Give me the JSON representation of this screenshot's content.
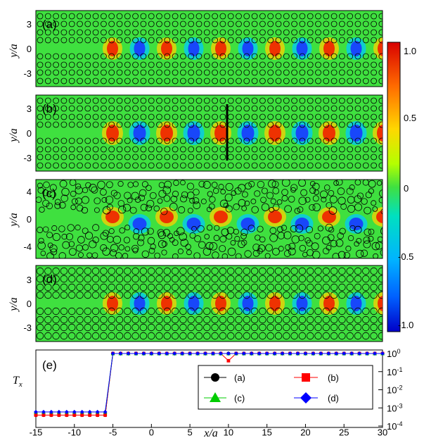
{
  "figure": {
    "panels": [
      {
        "label": "(a)",
        "ylabel": "y/a",
        "yticks": [
          "3",
          "0",
          "-3"
        ]
      },
      {
        "label": "(b)",
        "ylabel": "y/a",
        "yticks": [
          "3",
          "0",
          "-3"
        ]
      },
      {
        "label": "(c)",
        "ylabel": "y/a",
        "yticks": [
          "4",
          "0",
          "-4"
        ]
      },
      {
        "label": "(d)",
        "ylabel": "y/a",
        "yticks": [
          "3",
          "0",
          "-3"
        ]
      }
    ],
    "colorbar": {
      "ticks": [
        "1.0",
        "0.5",
        "0",
        "-0.5",
        "-1.0"
      ],
      "min": -1.0,
      "max": 1.0
    },
    "panel_e": {
      "label": "(e)",
      "ylabel": "T",
      "ylabel_sub": "x"
    },
    "xaxis": {
      "label": "x/a",
      "ticks": [
        "-15",
        "-10",
        "-5",
        "0",
        "5",
        "10",
        "15",
        "20",
        "25",
        "30"
      ]
    },
    "legend": [
      {
        "label": "(a)",
        "color": "#000000",
        "marker": "circle"
      },
      {
        "label": "(b)",
        "color": "#ff0000",
        "marker": "square"
      },
      {
        "label": "(c)",
        "color": "#00cc00",
        "marker": "triangle"
      },
      {
        "label": "(d)",
        "color": "#0000ff",
        "marker": "diamond"
      }
    ]
  },
  "chart_data": {
    "type": "line",
    "x": [
      -15,
      -14,
      -13,
      -12,
      -11,
      -10,
      -9,
      -8,
      -7,
      -6,
      -5,
      -4,
      -3,
      -2,
      -1,
      0,
      1,
      2,
      3,
      4,
      5,
      6,
      7,
      8,
      9,
      10,
      11,
      12,
      13,
      14,
      15,
      16,
      17,
      18,
      19,
      20,
      21,
      22,
      23,
      24,
      25,
      26,
      27,
      28,
      29,
      30
    ],
    "xlabel": "x/a",
    "ylabel": "T_x",
    "yscale": "log",
    "ylim": [
      0.0001,
      1
    ],
    "yticks": [
      "10^0",
      "10^-1",
      "10^-2",
      "10^-3",
      "10^-4"
    ],
    "series": [
      {
        "name": "(a)",
        "values": [
          0.0004,
          0.0004,
          0.0004,
          0.0004,
          0.0004,
          0.0004,
          0.0004,
          0.0004,
          0.0004,
          0.0004,
          1,
          1,
          1,
          1,
          1,
          1,
          1,
          1,
          1,
          1,
          1,
          1,
          1,
          1,
          1,
          1,
          1,
          1,
          1,
          1,
          1,
          1,
          1,
          1,
          1,
          1,
          1,
          1,
          1,
          1,
          1,
          1,
          1,
          1,
          1,
          1
        ]
      },
      {
        "name": "(b)",
        "values": [
          0.0004,
          0.0004,
          0.0004,
          0.0004,
          0.0004,
          0.0004,
          0.0004,
          0.0004,
          0.0004,
          0.0004,
          1,
          1,
          1,
          1,
          1,
          1,
          1,
          1,
          1,
          1,
          1,
          1,
          1,
          1,
          1,
          0.4,
          1,
          1,
          1,
          1,
          1,
          1,
          1,
          1,
          1,
          1,
          1,
          1,
          1,
          1,
          1,
          1,
          1,
          1,
          1,
          1
        ]
      },
      {
        "name": "(c)",
        "values": [
          0.0006,
          0.0006,
          0.0006,
          0.0006,
          0.0006,
          0.0006,
          0.0006,
          0.0006,
          0.0006,
          0.0006,
          1,
          1,
          1,
          1,
          1,
          1,
          1,
          1,
          1,
          1,
          1,
          1,
          1,
          1,
          1,
          1,
          1,
          1,
          1,
          1,
          1,
          1,
          1,
          1,
          1,
          1,
          1,
          1,
          1,
          1,
          1,
          1,
          1,
          1,
          1,
          1
        ]
      },
      {
        "name": "(d)",
        "values": [
          0.0006,
          0.0006,
          0.0006,
          0.0006,
          0.0006,
          0.0006,
          0.0006,
          0.0006,
          0.0006,
          0.0006,
          1,
          1,
          1,
          1,
          1,
          1,
          1,
          1,
          1,
          1,
          1,
          1,
          1,
          1,
          1,
          1,
          1,
          1,
          1,
          1,
          1,
          1,
          1,
          1,
          1,
          1,
          1,
          1,
          1,
          1,
          1,
          1,
          1,
          1,
          1,
          1
        ]
      }
    ]
  }
}
